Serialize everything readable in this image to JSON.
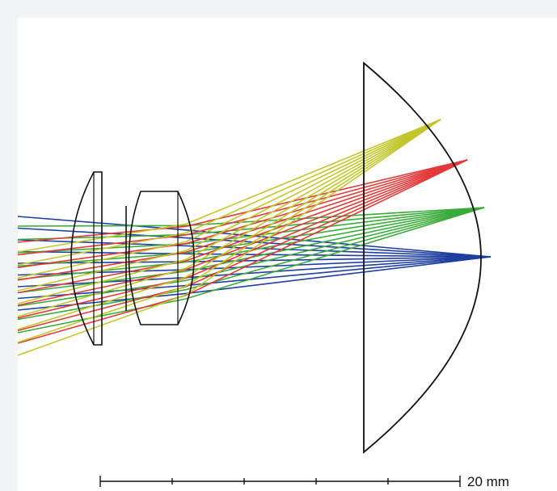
{
  "diagram": {
    "scale_bar": {
      "label": "20 mm",
      "divisions": 5
    },
    "ray_colors": {
      "axial": "#1f3f9f",
      "field_1": "#3aab3a",
      "field_2": "#e23a3a",
      "field_3": "#c2c62c"
    },
    "line_color": "#111111"
  }
}
